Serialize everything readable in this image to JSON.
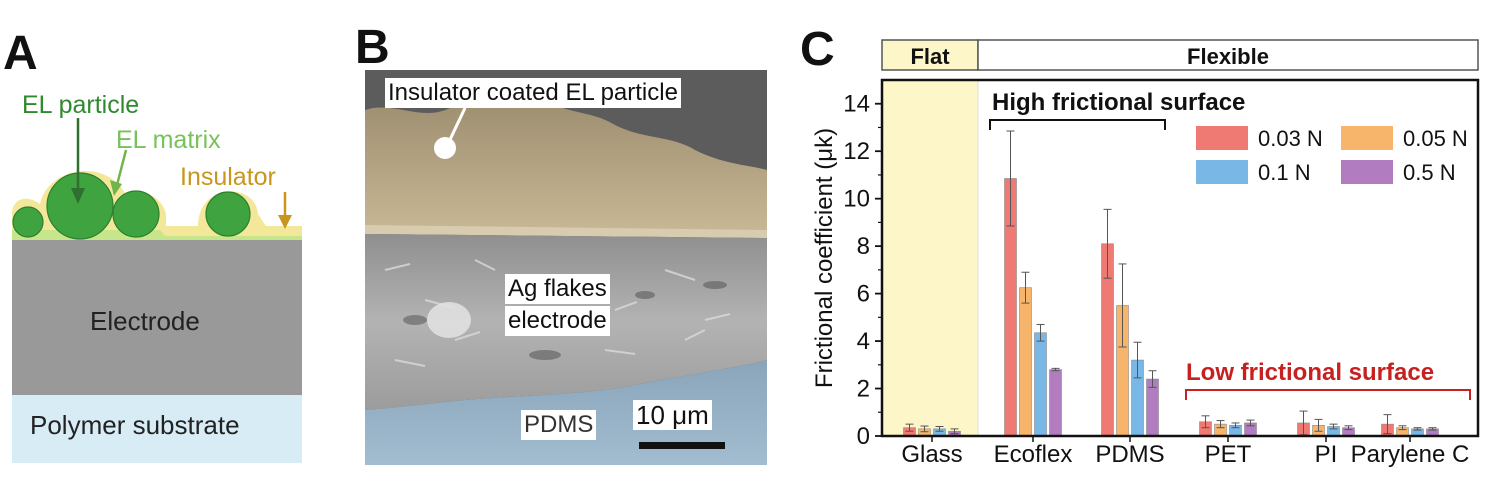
{
  "panel_a": {
    "letter": "A",
    "labels": {
      "el_particle": "EL particle",
      "el_matrix": "EL matrix",
      "insulator": "Insulator",
      "electrode": "Electrode",
      "substrate": "Polymer substrate"
    },
    "colors": {
      "particle": "#3fa33f",
      "particle_text": "#2f8a2f",
      "matrix_text": "#78c25a",
      "insulator": "#f3e89a",
      "insulator_text": "#c9961d",
      "electrode": "#999999",
      "substrate": "#d8ecf6"
    }
  },
  "panel_b": {
    "letter": "B",
    "labels": {
      "coated_particle": "Insulator coated EL particle",
      "ag_line1": "Ag flakes",
      "ag_line2": "electrode",
      "pdms": "PDMS",
      "scale_bar": "10 μm"
    },
    "colors": {
      "top": "#b4a384",
      "middle": "#a7a7a7",
      "bottom": "#93aec3",
      "background": "#5c5c5c"
    }
  },
  "panel_c": {
    "letter": "C",
    "header_flat": "Flat",
    "header_flexible": "Flexible",
    "high_label": "High frictional surface",
    "low_label": "Low frictional surface",
    "colors": {
      "flat_bg": "#fcf6c8",
      "low_label": "#c62020",
      "s1": "#ee7a73",
      "s2": "#f7b56b",
      "s3": "#79b7e6",
      "s4": "#b27cc0"
    }
  },
  "chart_data": {
    "type": "bar",
    "categories": [
      "Glass",
      "Ecoflex",
      "PDMS",
      "PET",
      "PI",
      "Parylene C"
    ],
    "ylabel": "Frictional coefficient (μk)",
    "ylim": [
      0,
      15
    ],
    "yticks": [
      0,
      2,
      4,
      6,
      8,
      10,
      12,
      14
    ],
    "legend_placement": "top-right",
    "series": [
      {
        "name": "0.03 N",
        "values": [
          0.35,
          10.85,
          8.1,
          0.6,
          0.55,
          0.5
        ],
        "errors": [
          0.15,
          2.0,
          1.45,
          0.25,
          0.5,
          0.4
        ]
      },
      {
        "name": "0.05 N",
        "values": [
          0.3,
          6.25,
          5.5,
          0.5,
          0.45,
          0.35
        ],
        "errors": [
          0.12,
          0.65,
          1.75,
          0.15,
          0.25,
          0.08
        ]
      },
      {
        "name": "0.1 N",
        "values": [
          0.3,
          4.35,
          3.2,
          0.45,
          0.4,
          0.3
        ],
        "errors": [
          0.1,
          0.35,
          0.75,
          0.1,
          0.1,
          0.05
        ]
      },
      {
        "name": "0.5 N",
        "values": [
          0.2,
          2.8,
          2.4,
          0.55,
          0.35,
          0.3
        ],
        "errors": [
          0.1,
          0.05,
          0.35,
          0.12,
          0.08,
          0.05
        ]
      }
    ]
  }
}
